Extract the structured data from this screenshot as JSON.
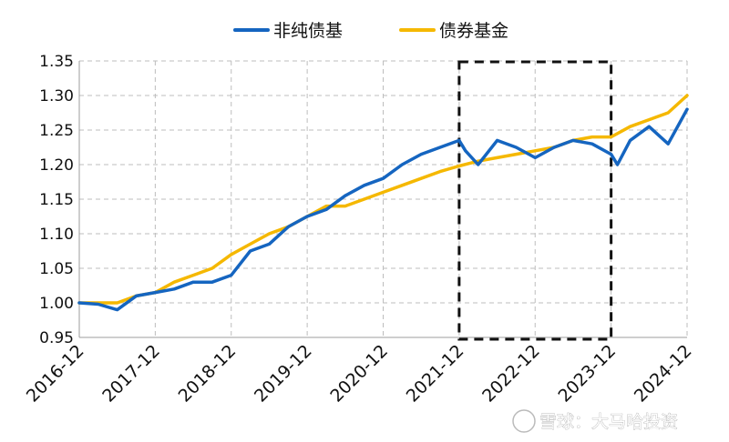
{
  "chart_data": {
    "type": "line",
    "title": "",
    "xlabel": "",
    "ylabel": "",
    "ylim": [
      0.95,
      1.35
    ],
    "xlim": [
      "2016-12",
      "2024-12"
    ],
    "grid": true,
    "legend_position": "top-center",
    "y_ticks": [
      "0.95",
      "1.00",
      "1.05",
      "1.10",
      "1.15",
      "1.20",
      "1.25",
      "1.30",
      "1.35"
    ],
    "x_ticks": [
      "2016-12",
      "2017-12",
      "2018-12",
      "2019-12",
      "2020-12",
      "2021-12",
      "2022-12",
      "2023-12",
      "2024-12"
    ],
    "highlight_box": {
      "x_start": "2021-12",
      "x_end": "2023-12",
      "style": "dashed"
    },
    "series": [
      {
        "name": "非纯债基",
        "color": "#1565c0",
        "x": [
          "2016-12",
          "2017-03",
          "2017-06",
          "2017-09",
          "2017-12",
          "2018-03",
          "2018-06",
          "2018-09",
          "2018-12",
          "2019-03",
          "2019-06",
          "2019-09",
          "2019-12",
          "2020-03",
          "2020-06",
          "2020-09",
          "2020-12",
          "2021-03",
          "2021-06",
          "2021-09",
          "2021-12",
          "2022-01",
          "2022-03",
          "2022-06",
          "2022-09",
          "2022-12",
          "2023-03",
          "2023-06",
          "2023-09",
          "2023-12",
          "2024-01",
          "2024-03",
          "2024-06",
          "2024-09",
          "2024-12"
        ],
        "values": [
          1.0,
          0.998,
          0.99,
          1.01,
          1.015,
          1.02,
          1.03,
          1.03,
          1.04,
          1.075,
          1.085,
          1.11,
          1.125,
          1.135,
          1.155,
          1.17,
          1.18,
          1.2,
          1.215,
          1.225,
          1.235,
          1.22,
          1.2,
          1.235,
          1.225,
          1.21,
          1.225,
          1.235,
          1.23,
          1.215,
          1.2,
          1.235,
          1.255,
          1.23,
          1.28
        ]
      },
      {
        "name": "债券基金",
        "color": "#f5b800",
        "x": [
          "2016-12",
          "2017-03",
          "2017-06",
          "2017-09",
          "2017-12",
          "2018-03",
          "2018-06",
          "2018-09",
          "2018-12",
          "2019-03",
          "2019-06",
          "2019-09",
          "2019-12",
          "2020-03",
          "2020-06",
          "2020-09",
          "2020-12",
          "2021-03",
          "2021-06",
          "2021-09",
          "2021-12",
          "2022-03",
          "2022-06",
          "2022-09",
          "2022-12",
          "2023-03",
          "2023-06",
          "2023-09",
          "2023-12",
          "2024-03",
          "2024-06",
          "2024-09",
          "2024-12"
        ],
        "values": [
          1.0,
          1.0,
          1.0,
          1.01,
          1.015,
          1.03,
          1.04,
          1.05,
          1.07,
          1.085,
          1.1,
          1.11,
          1.125,
          1.14,
          1.14,
          1.15,
          1.16,
          1.17,
          1.18,
          1.19,
          1.198,
          1.205,
          1.21,
          1.215,
          1.22,
          1.225,
          1.235,
          1.24,
          1.24,
          1.255,
          1.265,
          1.275,
          1.3
        ]
      }
    ]
  },
  "watermark": "雪球：大马哈投资"
}
